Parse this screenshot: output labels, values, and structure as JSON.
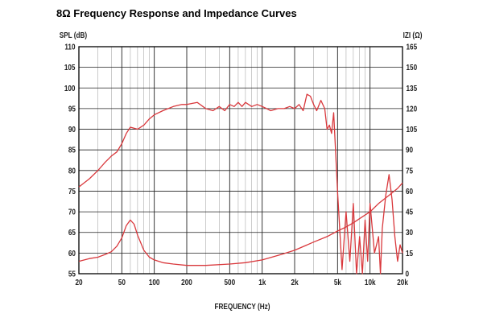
{
  "chart_data": {
    "type": "line",
    "title": "8Ω Frequency Response and Impedance Curves",
    "xlabel": "FREQUENCY (Hz)",
    "ylabel": "SPL (dB)",
    "y2label": "IZI (Ω)",
    "x_scale": "log",
    "xlim": [
      20,
      20000
    ],
    "ylim": [
      55,
      110
    ],
    "y2lim": [
      0,
      165
    ],
    "grid": true,
    "legend": "none",
    "x_ticks": [
      {
        "value": 20,
        "label": "20"
      },
      {
        "value": 50,
        "label": "50"
      },
      {
        "value": 100,
        "label": "100"
      },
      {
        "value": 200,
        "label": "200"
      },
      {
        "value": 500,
        "label": "500"
      },
      {
        "value": 1000,
        "label": "1k"
      },
      {
        "value": 2000,
        "label": "2k"
      },
      {
        "value": 5000,
        "label": "5k"
      },
      {
        "value": 10000,
        "label": "10k"
      },
      {
        "value": 20000,
        "label": "20k"
      }
    ],
    "y_ticks": [
      110,
      105,
      100,
      95,
      90,
      85,
      80,
      75,
      70,
      65,
      60,
      55
    ],
    "y2_ticks": [
      165,
      150,
      135,
      120,
      105,
      90,
      75,
      60,
      45,
      30,
      15,
      0
    ],
    "series": [
      {
        "axis": "left",
        "color": "#d9383c",
        "x": [
          20,
          25,
          30,
          35,
          40,
          45,
          50,
          55,
          60,
          70,
          80,
          90,
          100,
          120,
          150,
          180,
          200,
          250,
          300,
          350,
          400,
          450,
          500,
          550,
          600,
          650,
          700,
          800,
          900,
          1000,
          1100,
          1200,
          1400,
          1600,
          1800,
          2000,
          2200,
          2400,
          2600,
          2800,
          3000,
          3200,
          3500,
          3800,
          4000,
          4200,
          4400,
          4600,
          5000,
          5500,
          6000,
          6500,
          7000,
          7500,
          8000,
          8500,
          9000,
          9500,
          10000,
          11000,
          12000,
          12500,
          13000,
          14000,
          15000,
          16000,
          17000,
          18000,
          19000,
          20000
        ],
        "y": [
          76,
          78,
          80,
          82,
          83.5,
          84.5,
          86.5,
          89,
          90.5,
          90,
          91,
          92.5,
          93.5,
          94.5,
          95.5,
          96,
          96,
          96.5,
          95,
          94.5,
          95.5,
          94.5,
          96,
          95.5,
          96.5,
          95.5,
          96.5,
          95.5,
          96,
          95.5,
          95,
          94.5,
          95,
          95,
          95.5,
          95,
          96,
          94.5,
          98.5,
          98,
          96,
          94.5,
          97,
          95,
          90,
          91,
          89,
          94,
          75,
          56,
          70,
          58,
          72,
          55,
          64,
          55,
          68,
          58,
          72,
          60,
          64,
          55,
          66,
          74,
          79,
          73,
          64,
          58,
          62,
          60
        ]
      },
      {
        "axis": "right",
        "color": "#d9383c",
        "x": [
          20,
          25,
          30,
          35,
          40,
          45,
          50,
          55,
          60,
          65,
          70,
          80,
          90,
          100,
          120,
          150,
          200,
          300,
          500,
          700,
          1000,
          1500,
          2000,
          3000,
          4000,
          5000,
          6000,
          7000,
          8000,
          10000,
          12000,
          15000,
          18000,
          20000
        ],
        "y": [
          9,
          11,
          12,
          14,
          16,
          20,
          26,
          35,
          39,
          36,
          28,
          17,
          12,
          10,
          8,
          7,
          6,
          6,
          7,
          8,
          10,
          14,
          17,
          23,
          27,
          31,
          34,
          37,
          40,
          45,
          51,
          57,
          62,
          66
        ]
      }
    ]
  }
}
